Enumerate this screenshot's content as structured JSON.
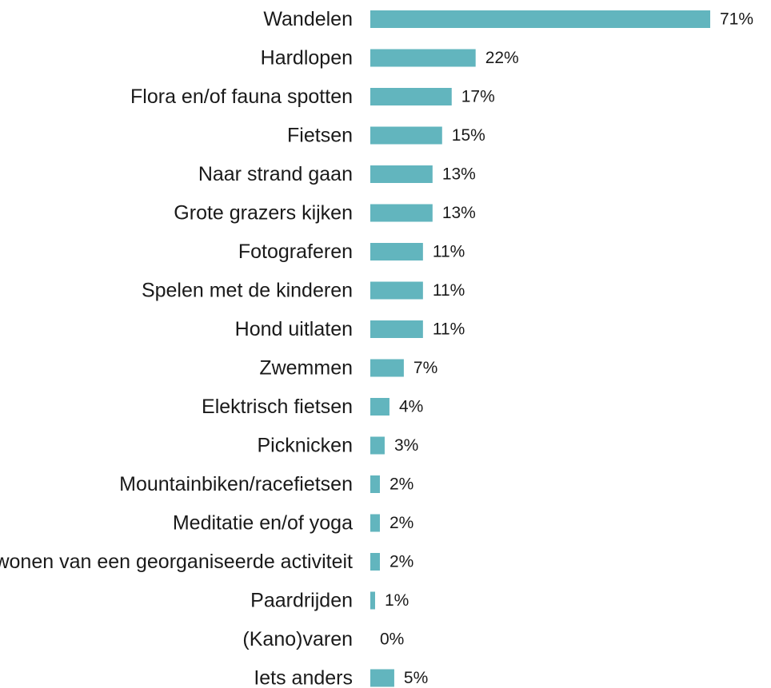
{
  "chart_data": {
    "type": "bar",
    "orientation": "horizontal",
    "categories": [
      "Wandelen",
      "Hardlopen",
      "Flora en/of fauna spotten",
      "Fietsen",
      "Naar strand gaan",
      "Grote grazers kijken",
      "Fotograferen",
      "Spelen met de kinderen",
      "Hond uitlaten",
      "Zwemmen",
      "Elektrisch fietsen",
      "Picknicken",
      "Mountainbiken/racefietsen",
      "Meditatie en/of yoga",
      "Bijwonen van een georganiseerde activiteit",
      "Paardrijden",
      "(Kano)varen",
      "Iets anders"
    ],
    "values": [
      71,
      22,
      17,
      15,
      13,
      13,
      11,
      11,
      11,
      7,
      4,
      3,
      2,
      2,
      2,
      1,
      0,
      5
    ],
    "value_labels": [
      "71%",
      "22%",
      "17%",
      "15%",
      "13%",
      "13%",
      "11%",
      "11%",
      "11%",
      "7%",
      "4%",
      "3%",
      "2%",
      "2%",
      "2%",
      "1%",
      "0%",
      "5%"
    ],
    "unit": "%",
    "xlim": [
      0,
      71
    ],
    "grid": false,
    "legend": "none",
    "bar_color": "#62b5be",
    "title": "",
    "xlabel": "",
    "ylabel": ""
  }
}
